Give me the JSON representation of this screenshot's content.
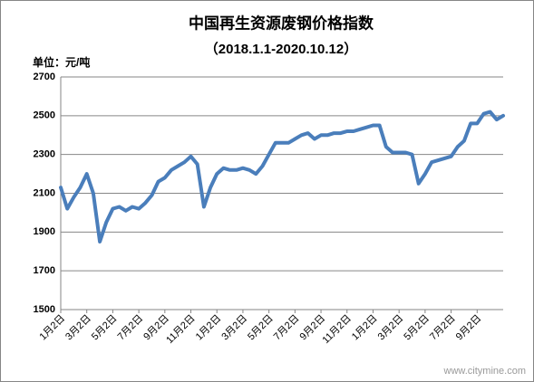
{
  "chart_data": {
    "type": "line",
    "title": "中国再生资源废钢价格指数",
    "subtitle": "（2018.1.1-2020.10.12）",
    "y_axis_label": "单位：元/吨",
    "watermark": "www.citymine.com",
    "categories": [
      "1月2日",
      null,
      null,
      null,
      "3月2日",
      null,
      null,
      null,
      "5月2日",
      null,
      null,
      null,
      "7月2日",
      null,
      null,
      null,
      "9月2日",
      null,
      null,
      null,
      "11月2日",
      null,
      null,
      null,
      "1月2日",
      null,
      null,
      null,
      "3月2日",
      null,
      null,
      null,
      "5月2日",
      null,
      null,
      null,
      "7月2日",
      null,
      null,
      null,
      "9月2日",
      null,
      null,
      null,
      "11月2日",
      null,
      null,
      null,
      "1月2日",
      null,
      null,
      null,
      "3月2日",
      null,
      null,
      null,
      "5月2日",
      null,
      null,
      null,
      "7月2日",
      null,
      null,
      null,
      "9月2日",
      null,
      null,
      null,
      null
    ],
    "series": [
      {
        "name": "废钢价格指数",
        "color": "#4a7ebb",
        "values": [
          2130,
          2020,
          2080,
          2130,
          2200,
          2100,
          1850,
          1950,
          2020,
          2030,
          2010,
          2030,
          2020,
          2050,
          2090,
          2160,
          2180,
          2220,
          2240,
          2260,
          2290,
          2250,
          2030,
          2130,
          2200,
          2230,
          2220,
          2220,
          2230,
          2220,
          2200,
          2240,
          2300,
          2360,
          2360,
          2360,
          2380,
          2400,
          2410,
          2380,
          2400,
          2400,
          2410,
          2410,
          2420,
          2420,
          2430,
          2440,
          2450,
          2450,
          2340,
          2310,
          2310,
          2310,
          2300,
          2150,
          2200,
          2260,
          2270,
          2280,
          2290,
          2340,
          2370,
          2460,
          2460,
          2510,
          2520,
          2480,
          2500
        ]
      }
    ],
    "ylim": [
      1500,
      2700
    ],
    "yticks": [
      1500,
      1700,
      1900,
      2100,
      2300,
      2500,
      2700
    ],
    "grid": true
  }
}
